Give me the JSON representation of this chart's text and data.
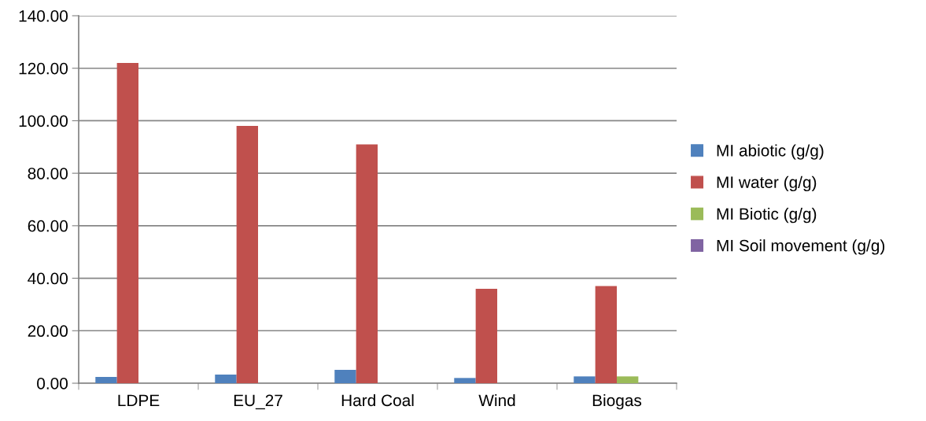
{
  "chart_data": {
    "type": "bar",
    "categories": [
      "LDPE",
      "EU_27",
      "Hard Coal",
      "Wind",
      "Biogas"
    ],
    "series": [
      {
        "name": "MI abiotic (g/g)",
        "color": "#4f81bd",
        "values": [
          2.4,
          3.3,
          5.1,
          2.0,
          2.6
        ]
      },
      {
        "name": "MI water (g/g)",
        "color": "#c0504d",
        "values": [
          122,
          98,
          91,
          36,
          37
        ]
      },
      {
        "name": "MI Biotic (g/g)",
        "color": "#9bbb59",
        "values": [
          0,
          0,
          0,
          0,
          2.6
        ]
      },
      {
        "name": "MI Soil movement (g/g)",
        "color": "#8064a2",
        "values": [
          0,
          0,
          0,
          0,
          0
        ]
      }
    ],
    "ylim": [
      0,
      140
    ],
    "yticks": [
      {
        "value": 0,
        "label": "0.00"
      },
      {
        "value": 20,
        "label": "20.00"
      },
      {
        "value": 40,
        "label": "40.00"
      },
      {
        "value": 60,
        "label": "60.00"
      },
      {
        "value": 80,
        "label": "80.00"
      },
      {
        "value": 100,
        "label": "100.00"
      },
      {
        "value": 120,
        "label": "120.00"
      },
      {
        "value": 140,
        "label": "140.00"
      }
    ],
    "grid": "y",
    "legend": "right"
  }
}
